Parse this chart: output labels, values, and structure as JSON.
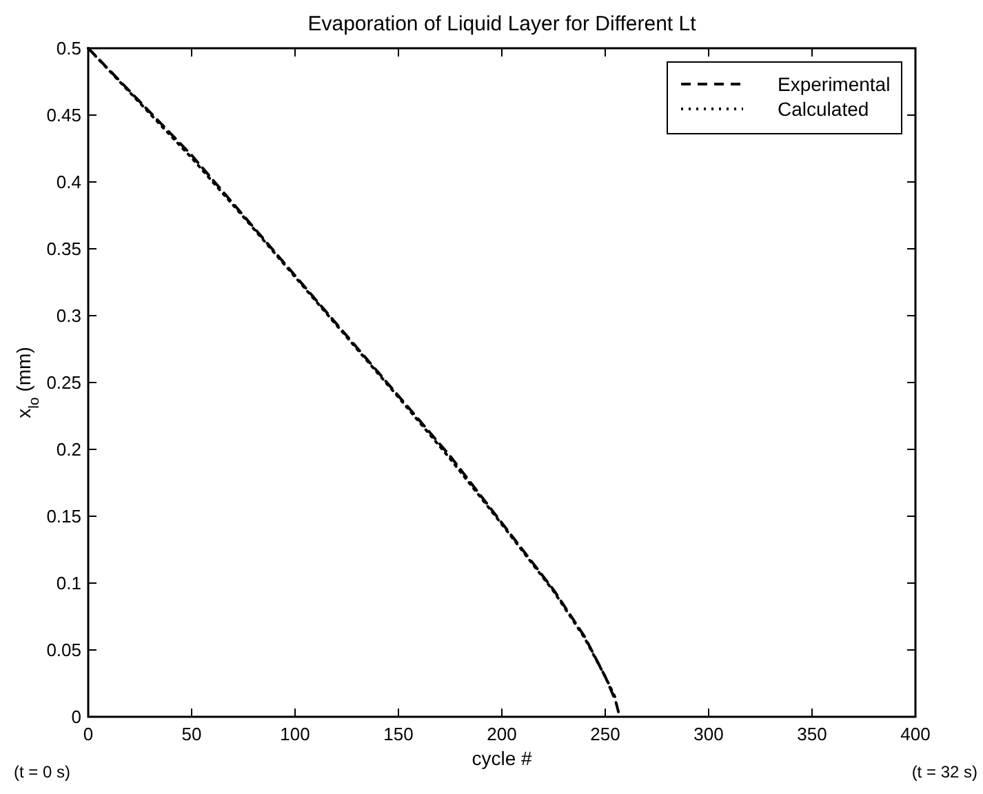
{
  "chart_data": {
    "type": "line",
    "title": "Evaporation of Liquid Layer for Different Lt",
    "xlabel": "cycle #",
    "ylabel": "x$_{lo}$ (mm)",
    "annotations": [
      "(t = 0 s)",
      "(t = 32 s)"
    ],
    "xlim": [
      0,
      400
    ],
    "xticks": [
      0,
      50,
      100,
      150,
      200,
      250,
      300,
      350,
      400
    ],
    "ylim": [
      0,
      0.5
    ],
    "yticks": [
      0,
      0.05,
      0.1,
      0.15,
      0.2,
      0.25,
      0.3,
      0.35,
      0.4,
      0.45,
      0.5
    ],
    "grid": false,
    "legend": "top right",
    "series": [
      {
        "name": "Experimental",
        "color": "#000000",
        "line_style": "dashed",
        "x": [
          0,
          25,
          50,
          75,
          100,
          125,
          150,
          175,
          200,
          225,
          240,
          250,
          255,
          257
        ],
        "values": [
          0.5,
          0.46,
          0.42,
          0.375,
          0.33,
          0.285,
          0.24,
          0.195,
          0.145,
          0.095,
          0.06,
          0.03,
          0.012,
          0
        ]
      },
      {
        "name": "Calculated",
        "color": "#000000",
        "line_style": "dotted",
        "x": [
          3,
          25,
          50,
          75,
          100,
          125,
          150,
          175,
          200,
          225,
          240,
          250,
          255
        ],
        "values": [
          0.495,
          0.459,
          0.418,
          0.374,
          0.329,
          0.284,
          0.239,
          0.193,
          0.144,
          0.094,
          0.059,
          0.03,
          0.014
        ]
      }
    ]
  }
}
